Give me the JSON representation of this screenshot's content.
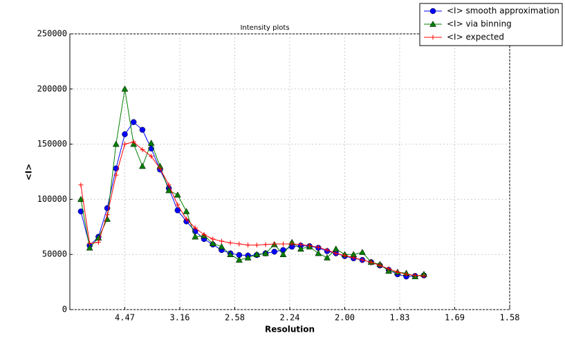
{
  "chart_data": {
    "type": "line",
    "title": "Intensity plots",
    "xlabel": "Resolution",
    "ylabel": "<I>",
    "x": [
      0.01,
      0.018,
      0.026,
      0.034,
      0.042,
      0.05,
      0.058,
      0.066,
      0.074,
      0.082,
      0.09,
      0.098,
      0.106,
      0.114,
      0.122,
      0.13,
      0.138,
      0.146,
      0.154,
      0.162,
      0.17,
      0.178,
      0.186,
      0.194,
      0.202,
      0.21,
      0.218,
      0.226,
      0.234,
      0.242,
      0.25,
      0.258,
      0.266,
      0.274,
      0.282,
      0.29,
      0.298,
      0.306,
      0.314,
      0.322
    ],
    "series": [
      {
        "name": "<I> smooth approximation",
        "color": "#0000ff",
        "marker": "circle",
        "values": [
          89000,
          58000,
          66000,
          92000,
          128000,
          159000,
          170000,
          163000,
          146000,
          127000,
          110000,
          90000,
          80000,
          71000,
          64000,
          59000,
          54000,
          51000,
          49500,
          49000,
          49500,
          51000,
          52500,
          54000,
          57000,
          58000,
          57500,
          56000,
          53000,
          51000,
          48500,
          46500,
          45000,
          43000,
          40000,
          36000,
          32000,
          30000,
          30500,
          31000
        ]
      },
      {
        "name": "<I> via binning",
        "color": "#007f00",
        "marker": "triangle",
        "values": [
          100000,
          56000,
          65000,
          82000,
          150000,
          200000,
          150000,
          130000,
          151000,
          130000,
          108000,
          104000,
          89000,
          66000,
          67000,
          60000,
          57000,
          50000,
          45000,
          47000,
          50000,
          51000,
          59000,
          50000,
          61000,
          55000,
          57000,
          51000,
          47000,
          55000,
          50000,
          50000,
          52000,
          43000,
          41000,
          35000,
          34000,
          33000,
          30000,
          32000
        ]
      },
      {
        "name": "<I> expected",
        "color": "#ff0000",
        "marker": "plus",
        "values": [
          113000,
          60000,
          61000,
          86000,
          122000,
          150000,
          152000,
          145000,
          139000,
          128000,
          113000,
          95000,
          82000,
          74000,
          68000,
          64000,
          62000,
          60500,
          59500,
          58500,
          58500,
          59000,
          59500,
          59500,
          59500,
          59000,
          58000,
          56500,
          54000,
          51000,
          49000,
          47000,
          45000,
          43000,
          40000,
          37000,
          34000,
          32000,
          31000,
          30500
        ]
      }
    ],
    "xlim": [
      0,
      0.4
    ],
    "xticks": [
      {
        "value": 0.05,
        "label": "4.47"
      },
      {
        "value": 0.1,
        "label": "3.16"
      },
      {
        "value": 0.15,
        "label": "2.58"
      },
      {
        "value": 0.2,
        "label": "2.24"
      },
      {
        "value": 0.25,
        "label": "2.00"
      },
      {
        "value": 0.3,
        "label": "1.83"
      },
      {
        "value": 0.35,
        "label": "1.69"
      },
      {
        "value": 0.4,
        "label": "1.58"
      }
    ],
    "ylim": [
      0,
      250000
    ],
    "yticks": [
      0,
      50000,
      100000,
      150000,
      200000,
      250000
    ],
    "grid": true
  }
}
